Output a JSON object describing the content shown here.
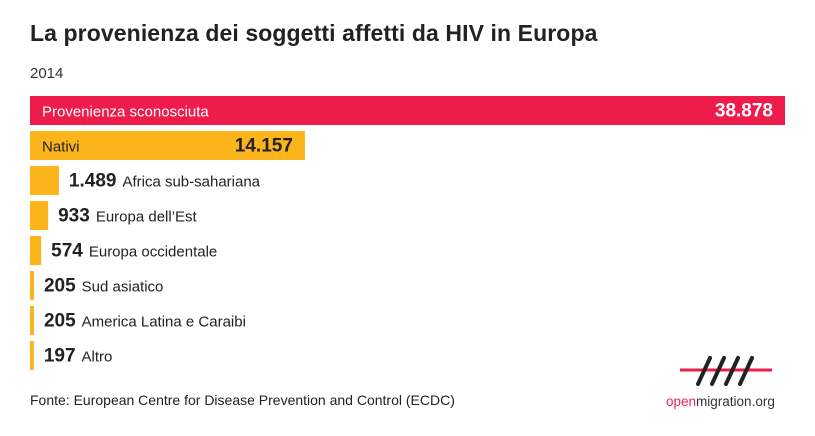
{
  "header": {
    "title": "La provenienza dei soggetti affetti da HIV in Europa",
    "subtitle": "2014"
  },
  "chart_data": {
    "type": "bar",
    "orientation": "horizontal",
    "title": "La provenienza dei soggetti affetti da HIV in Europa",
    "subtitle": "2014",
    "categories": [
      "Provenienza sconosciuta",
      "Nativi",
      "Africa sub-sahariana",
      "Europa dell’Est",
      "Europa occidentale",
      "Sud asiatico",
      "America Latina e Caraibi",
      "Altro"
    ],
    "values": [
      38878,
      14157,
      1489,
      933,
      574,
      205,
      205,
      197
    ],
    "value_labels": [
      "38.878",
      "14.157",
      "1.489",
      "933",
      "574",
      "205",
      "205",
      "197"
    ],
    "colors": {
      "highlight": "#ed1c4b",
      "default": "#fbb41a"
    },
    "highlight_index": 0,
    "xlim": [
      0,
      38878
    ],
    "grid": false,
    "legend": "none"
  },
  "footer": {
    "source": "Fonte: European Centre for Disease Prevention and Control (ECDC)",
    "logo_open": "open",
    "logo_rest": "migration.org"
  }
}
